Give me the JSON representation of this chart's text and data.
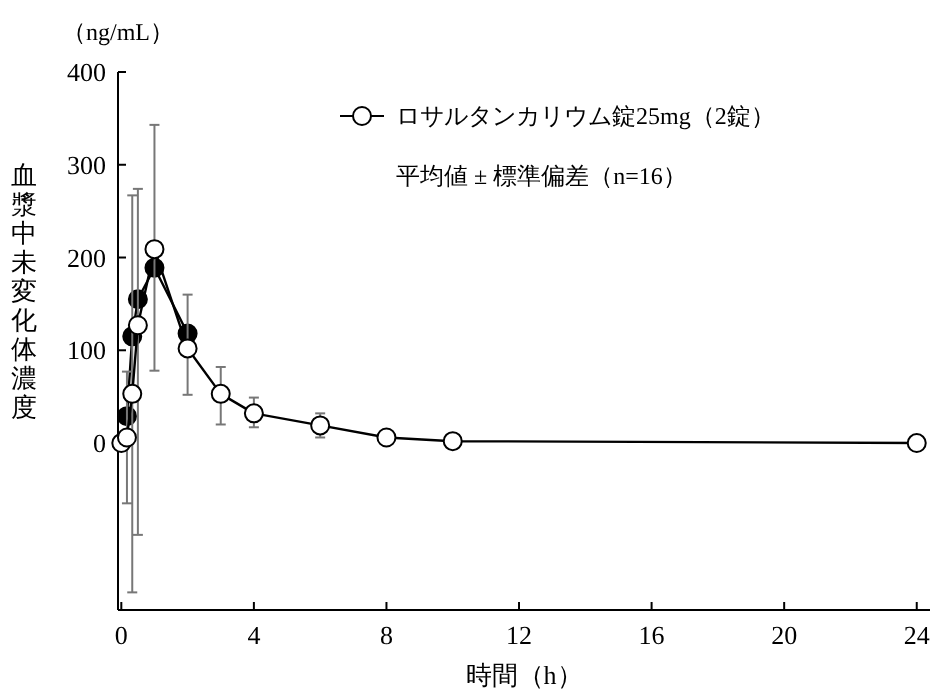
{
  "chart_data": {
    "type": "line",
    "xlabel": "時間（h）",
    "ylabel": "血漿中未変化体濃度",
    "annotations": [
      "（ng/mL）",
      "平均値 ± 標準偏差（n=16）"
    ],
    "x": [
      0,
      0.17,
      0.33,
      0.5,
      1,
      2,
      3,
      4,
      6,
      8,
      10,
      24
    ],
    "series": [
      {
        "name": "ロサルタンカリウム錠25mg（2錠）",
        "color": "#ffffff",
        "values": [
          0,
          6,
          53,
          127,
          209,
          102,
          53,
          32,
          19,
          6,
          2,
          0
        ],
        "errors": [
          null,
          [
            -65,
            77
          ],
          [
            -161,
            267
          ],
          [
            -99,
            274
          ],
          [
            78,
            343
          ],
          [
            52,
            160
          ],
          [
            20,
            82
          ],
          [
            17,
            49
          ],
          [
            6,
            32
          ],
          null,
          null,
          null
        ]
      },
      {
        "color": "#000000",
        "values": [
          null,
          29,
          115,
          155,
          189,
          118,
          null,
          null,
          null,
          null,
          null,
          null
        ]
      }
    ],
    "xlim": [
      -0.1,
      24.4
    ],
    "ylim": [
      -180,
      400
    ],
    "xticks": [
      0,
      4,
      8,
      12,
      16,
      20,
      24
    ],
    "yticks": [
      0,
      100,
      200,
      300,
      400
    ],
    "grid": false,
    "legend": "top right",
    "marker": "circle",
    "line_style": "solid"
  }
}
